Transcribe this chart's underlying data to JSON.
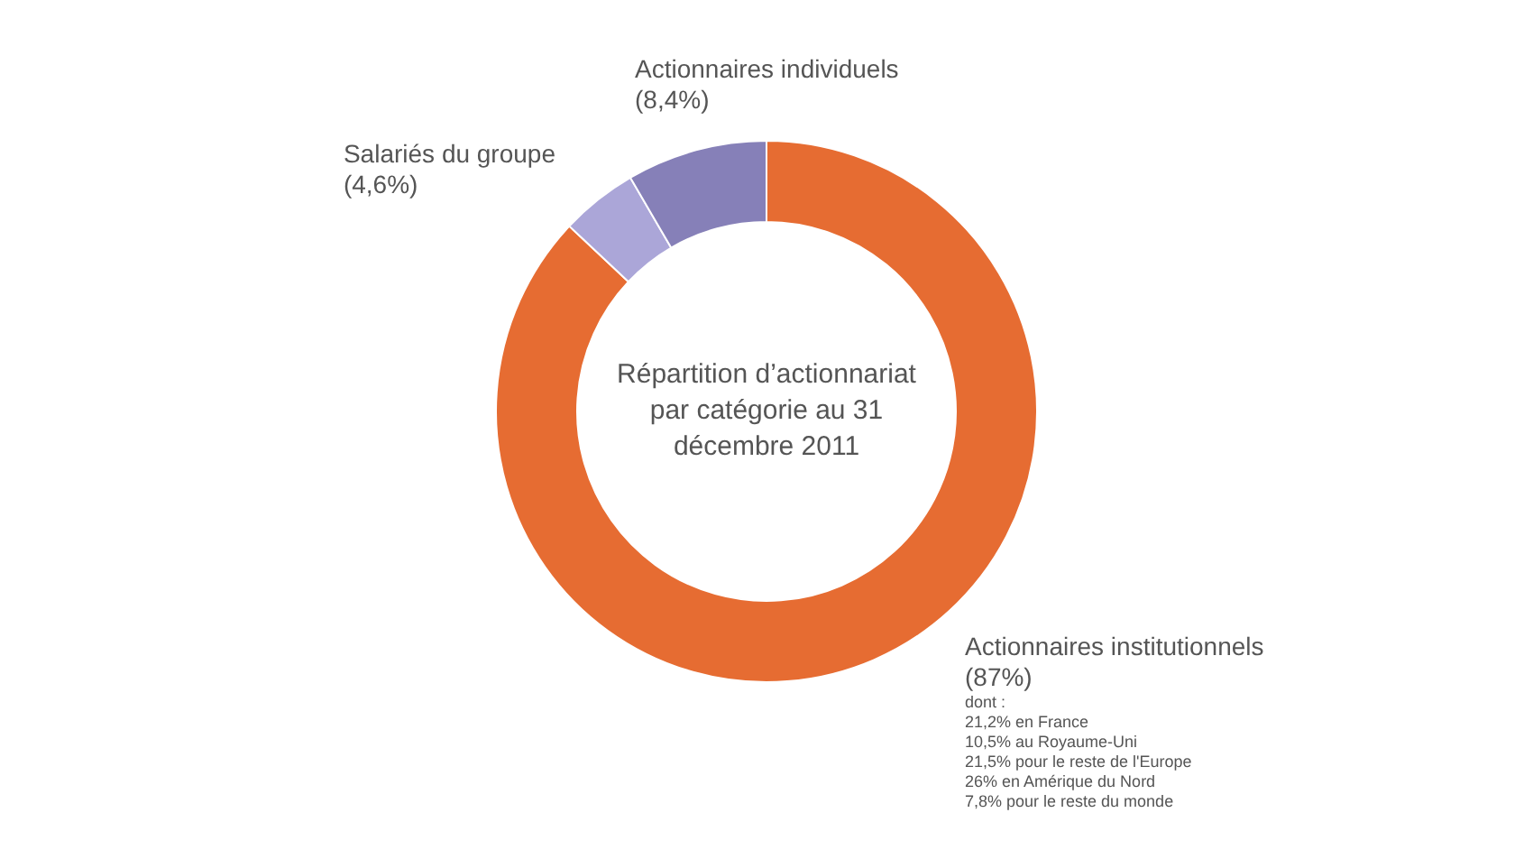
{
  "chart_data": {
    "type": "donut",
    "title": "Répartition d’actionnariat par catégorie au 31 décembre 2011",
    "categories": [
      "Actionnaires institutionnels",
      "Salariés du groupe",
      "Actionnaires individuels"
    ],
    "values": [
      87,
      4.6,
      8.4
    ],
    "value_labels": [
      "(87%)",
      "(4,6%)",
      "(8,4%)"
    ],
    "colors": [
      "#e66c32",
      "#aba6d8",
      "#8680b8"
    ],
    "annotations": [
      "dont :",
      "21,2% en France",
      "10,5% au Royaume-Uni",
      "21,5% pour le reste de l'Europe",
      "26% en Amérique du Nord",
      "7,8% pour le reste du monde"
    ],
    "legend": false
  }
}
